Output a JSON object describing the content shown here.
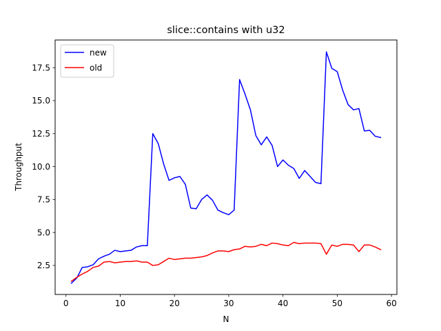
{
  "chart_data": {
    "type": "line",
    "title": "slice::contains with u32",
    "xlabel": "N",
    "ylabel": "Throughput",
    "xlim": [
      -2,
      61
    ],
    "ylim": [
      0.3,
      19.6
    ],
    "xticks": [
      0,
      10,
      20,
      30,
      40,
      50,
      60
    ],
    "yticks": [
      2.5,
      5.0,
      7.5,
      10.0,
      12.5,
      15.0,
      17.5
    ],
    "ytick_labels": [
      "2.5",
      "5.0",
      "7.5",
      "10.0",
      "12.5",
      "15.0",
      "17.5"
    ],
    "grid": false,
    "legend": "top-left",
    "x": [
      1,
      2,
      3,
      4,
      5,
      6,
      7,
      8,
      9,
      10,
      11,
      12,
      13,
      14,
      15,
      16,
      17,
      18,
      19,
      20,
      21,
      22,
      23,
      24,
      25,
      26,
      27,
      28,
      29,
      30,
      31,
      32,
      33,
      34,
      35,
      36,
      37,
      38,
      39,
      40,
      41,
      42,
      43,
      44,
      45,
      46,
      47,
      48,
      49,
      50,
      51,
      52,
      53,
      54,
      55,
      56,
      57,
      58
    ],
    "series": [
      {
        "name": "new",
        "color": "#0000ff",
        "values": [
          1.15,
          1.55,
          2.35,
          2.4,
          2.55,
          3.0,
          3.2,
          3.35,
          3.65,
          3.55,
          3.6,
          3.65,
          3.9,
          4.0,
          4.0,
          12.5,
          11.75,
          10.2,
          8.95,
          9.15,
          9.25,
          8.65,
          6.85,
          6.8,
          7.5,
          7.85,
          7.45,
          6.7,
          6.5,
          6.35,
          6.7,
          16.6,
          15.5,
          14.3,
          12.35,
          11.65,
          12.25,
          11.6,
          10.0,
          10.5,
          10.1,
          9.85,
          9.1,
          9.7,
          9.25,
          8.8,
          8.7,
          18.7,
          17.45,
          17.2,
          15.8,
          14.7,
          14.3,
          14.4,
          12.7,
          12.75,
          12.3,
          12.2
        ]
      },
      {
        "name": "old",
        "color": "#ff0000",
        "values": [
          1.3,
          1.6,
          1.85,
          2.05,
          2.35,
          2.45,
          2.75,
          2.8,
          2.7,
          2.75,
          2.8,
          2.8,
          2.85,
          2.75,
          2.75,
          2.5,
          2.55,
          2.8,
          3.05,
          2.95,
          3.0,
          3.05,
          3.05,
          3.1,
          3.15,
          3.25,
          3.45,
          3.6,
          3.6,
          3.55,
          3.7,
          3.75,
          3.95,
          3.9,
          3.95,
          4.1,
          4.0,
          4.2,
          4.15,
          4.05,
          4.0,
          4.25,
          4.15,
          4.2,
          4.2,
          4.2,
          4.15,
          3.35,
          4.05,
          3.95,
          4.1,
          4.1,
          4.05,
          3.55,
          4.05,
          4.05,
          3.9,
          3.7
        ]
      }
    ]
  }
}
